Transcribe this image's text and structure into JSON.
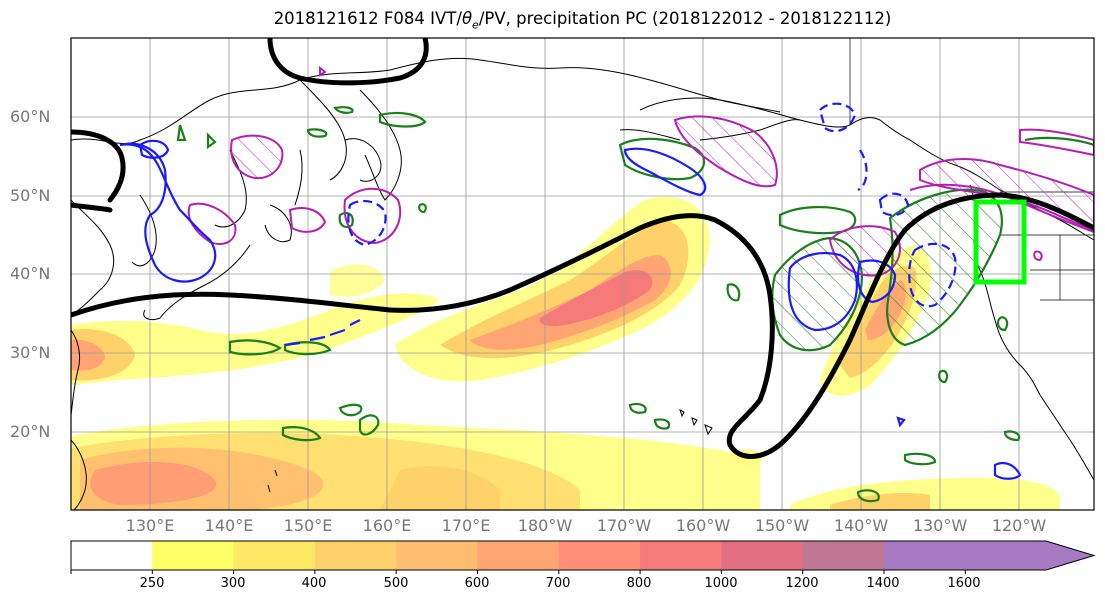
{
  "title_pre": "2018121612 F084 IVT/",
  "title_theta": "θ",
  "title_sub": "e",
  "title_post": "/PV, precipitation PC (2018122012 - 2018122112)",
  "lat_labels": [
    "60°N",
    "50°N",
    "40°N",
    "30°N",
    "20°N"
  ],
  "lon_labels": [
    "130°E",
    "140°E",
    "150°E",
    "160°E",
    "170°E",
    "180°W",
    "170°W",
    "160°W",
    "150°W",
    "140°W",
    "130°W",
    "120°W"
  ],
  "colorbar": {
    "ticks": [
      "250",
      "300",
      "400",
      "500",
      "600",
      "700",
      "800",
      "1000",
      "1200",
      "1400",
      "1600"
    ],
    "colors": [
      "#ffffff",
      "#ffff66",
      "#ffe866",
      "#ffd16a",
      "#ffbd70",
      "#ffa574",
      "#ff8f78",
      "#f77a7a",
      "#e07082",
      "#c07895",
      "#a67bc4"
    ]
  },
  "colors": {
    "ivt_black": "#000000",
    "theta_green": "#1a7f1a",
    "pv_magenta": "#b31eb3",
    "pv_blue": "#1a1aff",
    "box_green": "#00ff00"
  }
}
